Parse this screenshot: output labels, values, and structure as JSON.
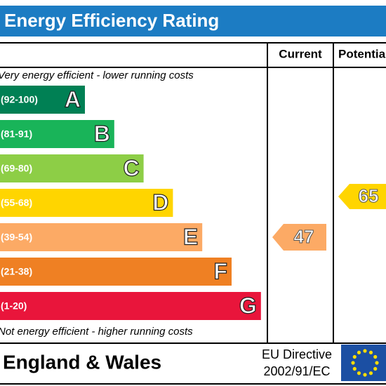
{
  "header": {
    "title": "Energy Efficiency Rating"
  },
  "columns": {
    "current": "Current",
    "potential": "Potential"
  },
  "top_note": "Very energy efficient - lower running costs",
  "bands": [
    {
      "range": "(92-100)",
      "letter": "A"
    },
    {
      "range": "(81-91)",
      "letter": "B"
    },
    {
      "range": "(69-80)",
      "letter": "C"
    },
    {
      "range": "(55-68)",
      "letter": "D"
    },
    {
      "range": "(39-54)",
      "letter": "E"
    },
    {
      "range": "(21-38)",
      "letter": "F"
    },
    {
      "range": "(1-20)",
      "letter": "G"
    }
  ],
  "bottom_note": "Not energy efficient - higher running costs",
  "ratings": {
    "current": "47",
    "potential": "65"
  },
  "footer": {
    "region": "England & Wales",
    "directive_line1": "EU Directive",
    "directive_line2": "2002/91/EC"
  }
}
